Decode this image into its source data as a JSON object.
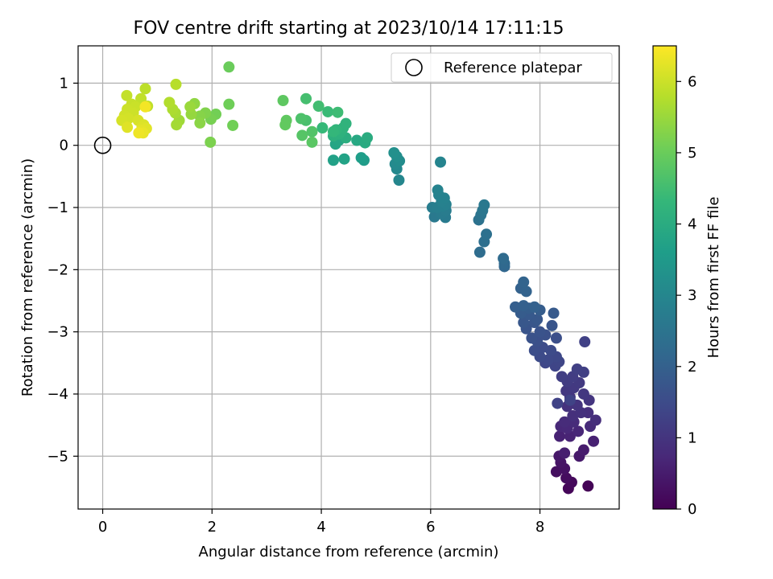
{
  "chart_data": {
    "type": "scatter",
    "title": "FOV centre drift starting at 2023/10/14 17:11:15",
    "xlabel": "Angular distance from reference (arcmin)",
    "ylabel": "Rotation from reference (arcmin)",
    "xlim": [
      -0.45,
      9.45
    ],
    "ylim": [
      -5.85,
      1.6
    ],
    "xticks": [
      0,
      2,
      4,
      6,
      8
    ],
    "yticks": [
      1,
      0,
      -1,
      -2,
      -3,
      -4,
      -5
    ],
    "xtick_labels": [
      "0",
      "2",
      "4",
      "6",
      "8"
    ],
    "ytick_labels": [
      "1",
      "0",
      "−1",
      "−2",
      "−3",
      "−4",
      "−5"
    ],
    "grid": true,
    "legend": {
      "placement": "top-right",
      "entries": [
        "Reference platepar"
      ]
    },
    "reference_point": {
      "x": 0,
      "y": 0
    },
    "colorbar": {
      "label": "Hours from first FF file",
      "colormap": "viridis",
      "range": [
        0,
        6.5
      ],
      "ticks": [
        0,
        1,
        2,
        3,
        4,
        5,
        6
      ],
      "tick_labels": [
        "0",
        "1",
        "2",
        "3",
        "4",
        "5",
        "6"
      ],
      "stops": [
        "#440154",
        "#482878",
        "#3e4989",
        "#31688e",
        "#26828e",
        "#1f9e89",
        "#35b779",
        "#6ece58",
        "#b5de2b",
        "#fde725"
      ]
    },
    "points": [
      {
        "x": 8.88,
        "y": -5.48,
        "h": 0.05
      },
      {
        "x": 8.52,
        "y": -5.52,
        "h": 0.1
      },
      {
        "x": 8.58,
        "y": -5.42,
        "h": 0.15
      },
      {
        "x": 8.48,
        "y": -5.35,
        "h": 0.2
      },
      {
        "x": 8.3,
        "y": -5.25,
        "h": 0.25
      },
      {
        "x": 8.45,
        "y": -5.2,
        "h": 0.3
      },
      {
        "x": 8.38,
        "y": -5.1,
        "h": 0.35
      },
      {
        "x": 8.35,
        "y": -5.0,
        "h": 0.4
      },
      {
        "x": 8.72,
        "y": -5.0,
        "h": 0.45
      },
      {
        "x": 8.8,
        "y": -4.9,
        "h": 0.5
      },
      {
        "x": 8.45,
        "y": -4.95,
        "h": 0.55
      },
      {
        "x": 8.98,
        "y": -4.76,
        "h": 0.6
      },
      {
        "x": 8.36,
        "y": -4.68,
        "h": 0.62
      },
      {
        "x": 8.55,
        "y": -4.68,
        "h": 0.65
      },
      {
        "x": 8.7,
        "y": -4.6,
        "h": 0.7
      },
      {
        "x": 8.38,
        "y": -4.52,
        "h": 0.72
      },
      {
        "x": 8.5,
        "y": -4.55,
        "h": 0.75
      },
      {
        "x": 8.92,
        "y": -4.52,
        "h": 0.78
      },
      {
        "x": 8.62,
        "y": -4.45,
        "h": 0.8
      },
      {
        "x": 8.45,
        "y": -4.45,
        "h": 0.82
      },
      {
        "x": 9.02,
        "y": -4.42,
        "h": 0.85
      },
      {
        "x": 8.88,
        "y": -4.3,
        "h": 0.88
      },
      {
        "x": 8.6,
        "y": -4.35,
        "h": 0.9
      },
      {
        "x": 8.75,
        "y": -4.3,
        "h": 0.92
      },
      {
        "x": 8.5,
        "y": -4.2,
        "h": 0.95
      },
      {
        "x": 8.68,
        "y": -4.18,
        "h": 0.98
      },
      {
        "x": 8.9,
        "y": -4.1,
        "h": 1.0
      },
      {
        "x": 8.55,
        "y": -4.05,
        "h": 1.02
      },
      {
        "x": 8.8,
        "y": -4.0,
        "h": 1.05
      },
      {
        "x": 8.48,
        "y": -3.95,
        "h": 1.08
      },
      {
        "x": 8.62,
        "y": -3.9,
        "h": 1.1
      },
      {
        "x": 8.72,
        "y": -3.82,
        "h": 1.12
      },
      {
        "x": 8.5,
        "y": -3.8,
        "h": 1.15
      },
      {
        "x": 8.6,
        "y": -3.72,
        "h": 1.18
      },
      {
        "x": 8.4,
        "y": -3.72,
        "h": 1.2
      },
      {
        "x": 8.8,
        "y": -3.65,
        "h": 1.22
      },
      {
        "x": 8.68,
        "y": -3.6,
        "h": 1.25
      },
      {
        "x": 8.82,
        "y": -3.16,
        "h": 1.28
      },
      {
        "x": 8.32,
        "y": -4.15,
        "h": 1.3
      },
      {
        "x": 8.55,
        "y": -4.1,
        "h": 1.32
      },
      {
        "x": 8.28,
        "y": -3.55,
        "h": 1.35
      },
      {
        "x": 8.35,
        "y": -3.48,
        "h": 1.38
      },
      {
        "x": 8.1,
        "y": -3.5,
        "h": 1.4
      },
      {
        "x": 8.3,
        "y": -3.4,
        "h": 1.42
      },
      {
        "x": 8.15,
        "y": -3.45,
        "h": 1.45
      },
      {
        "x": 8.0,
        "y": -3.4,
        "h": 1.48
      },
      {
        "x": 8.2,
        "y": -3.3,
        "h": 1.5
      },
      {
        "x": 8.05,
        "y": -3.25,
        "h": 1.52
      },
      {
        "x": 7.9,
        "y": -3.3,
        "h": 1.55
      },
      {
        "x": 8.3,
        "y": -3.1,
        "h": 1.58
      },
      {
        "x": 7.95,
        "y": -3.15,
        "h": 1.6
      },
      {
        "x": 8.1,
        "y": -3.05,
        "h": 1.62
      },
      {
        "x": 7.85,
        "y": -3.1,
        "h": 1.65
      },
      {
        "x": 8.0,
        "y": -3.0,
        "h": 1.68
      },
      {
        "x": 7.75,
        "y": -2.95,
        "h": 1.7
      },
      {
        "x": 8.22,
        "y": -2.9,
        "h": 1.72
      },
      {
        "x": 7.9,
        "y": -2.85,
        "h": 1.75
      },
      {
        "x": 7.7,
        "y": -2.85,
        "h": 1.78
      },
      {
        "x": 7.95,
        "y": -2.8,
        "h": 1.8
      },
      {
        "x": 7.8,
        "y": -2.72,
        "h": 1.82
      },
      {
        "x": 8.25,
        "y": -2.7,
        "h": 1.85
      },
      {
        "x": 7.65,
        "y": -2.7,
        "h": 1.88
      },
      {
        "x": 8.0,
        "y": -2.65,
        "h": 1.9
      },
      {
        "x": 7.8,
        "y": -2.62,
        "h": 1.92
      },
      {
        "x": 7.55,
        "y": -2.6,
        "h": 1.95
      },
      {
        "x": 7.7,
        "y": -2.58,
        "h": 1.98
      },
      {
        "x": 7.9,
        "y": -2.6,
        "h": 2.0
      },
      {
        "x": 7.65,
        "y": -2.3,
        "h": 2.02
      },
      {
        "x": 7.75,
        "y": -2.35,
        "h": 2.05
      },
      {
        "x": 7.7,
        "y": -2.2,
        "h": 2.08
      },
      {
        "x": 7.35,
        "y": -1.95,
        "h": 2.15
      },
      {
        "x": 7.35,
        "y": -1.9,
        "h": 2.2
      },
      {
        "x": 7.33,
        "y": -1.82,
        "h": 2.25
      },
      {
        "x": 6.9,
        "y": -1.72,
        "h": 2.3
      },
      {
        "x": 6.98,
        "y": -1.55,
        "h": 2.35
      },
      {
        "x": 7.02,
        "y": -1.43,
        "h": 2.4
      },
      {
        "x": 6.88,
        "y": -1.2,
        "h": 2.45
      },
      {
        "x": 6.92,
        "y": -1.12,
        "h": 2.5
      },
      {
        "x": 6.95,
        "y": -1.05,
        "h": 2.55
      },
      {
        "x": 6.98,
        "y": -0.96,
        "h": 2.6
      },
      {
        "x": 6.07,
        "y": -1.15,
        "h": 2.65
      },
      {
        "x": 6.27,
        "y": -1.16,
        "h": 2.68
      },
      {
        "x": 6.2,
        "y": -1.1,
        "h": 2.7
      },
      {
        "x": 6.28,
        "y": -1.05,
        "h": 2.72
      },
      {
        "x": 6.03,
        "y": -1.0,
        "h": 2.75
      },
      {
        "x": 6.12,
        "y": -1.0,
        "h": 2.78
      },
      {
        "x": 6.22,
        "y": -0.98,
        "h": 2.8
      },
      {
        "x": 6.28,
        "y": -0.95,
        "h": 2.82
      },
      {
        "x": 6.2,
        "y": -0.9,
        "h": 2.85
      },
      {
        "x": 6.25,
        "y": -0.85,
        "h": 2.88
      },
      {
        "x": 6.15,
        "y": -0.8,
        "h": 2.9
      },
      {
        "x": 6.13,
        "y": -0.72,
        "h": 2.92
      },
      {
        "x": 6.18,
        "y": -0.27,
        "h": 2.95
      },
      {
        "x": 5.42,
        "y": -0.56,
        "h": 3.0
      },
      {
        "x": 5.38,
        "y": -0.38,
        "h": 3.05
      },
      {
        "x": 5.35,
        "y": -0.3,
        "h": 3.1
      },
      {
        "x": 5.43,
        "y": -0.25,
        "h": 3.15
      },
      {
        "x": 5.38,
        "y": -0.18,
        "h": 3.2
      },
      {
        "x": 5.33,
        "y": -0.12,
        "h": 3.25
      },
      {
        "x": 4.78,
        "y": -0.24,
        "h": 3.55
      },
      {
        "x": 4.73,
        "y": -0.2,
        "h": 3.6
      },
      {
        "x": 4.22,
        "y": -0.24,
        "h": 3.7
      },
      {
        "x": 4.42,
        "y": -0.22,
        "h": 3.75
      },
      {
        "x": 4.26,
        "y": 0.02,
        "h": 3.8
      },
      {
        "x": 4.32,
        "y": 0.08,
        "h": 3.85
      },
      {
        "x": 4.65,
        "y": 0.08,
        "h": 3.9
      },
      {
        "x": 4.8,
        "y": 0.04,
        "h": 3.95
      },
      {
        "x": 4.84,
        "y": 0.12,
        "h": 4.0
      },
      {
        "x": 4.45,
        "y": 0.12,
        "h": 4.05
      },
      {
        "x": 4.22,
        "y": 0.15,
        "h": 4.1
      },
      {
        "x": 4.32,
        "y": 0.18,
        "h": 4.12
      },
      {
        "x": 4.36,
        "y": 0.22,
        "h": 4.15
      },
      {
        "x": 4.4,
        "y": 0.28,
        "h": 4.18
      },
      {
        "x": 4.45,
        "y": 0.35,
        "h": 4.2
      },
      {
        "x": 4.27,
        "y": 0.25,
        "h": 4.25
      },
      {
        "x": 4.22,
        "y": 0.22,
        "h": 4.3
      },
      {
        "x": 4.02,
        "y": 0.28,
        "h": 4.35
      },
      {
        "x": 4.12,
        "y": 0.54,
        "h": 4.4
      },
      {
        "x": 4.3,
        "y": 0.53,
        "h": 4.45
      },
      {
        "x": 3.95,
        "y": 0.63,
        "h": 4.5
      },
      {
        "x": 3.72,
        "y": 0.75,
        "h": 4.55
      },
      {
        "x": 3.72,
        "y": 0.4,
        "h": 4.6
      },
      {
        "x": 3.63,
        "y": 0.43,
        "h": 4.65
      },
      {
        "x": 3.83,
        "y": 0.22,
        "h": 4.7
      },
      {
        "x": 3.65,
        "y": 0.16,
        "h": 4.75
      },
      {
        "x": 3.83,
        "y": 0.05,
        "h": 4.8
      },
      {
        "x": 3.3,
        "y": 0.72,
        "h": 4.85
      },
      {
        "x": 3.36,
        "y": 0.4,
        "h": 4.88
      },
      {
        "x": 3.34,
        "y": 0.33,
        "h": 4.9
      },
      {
        "x": 2.31,
        "y": 1.26,
        "h": 5.0
      },
      {
        "x": 2.31,
        "y": 0.66,
        "h": 5.05
      },
      {
        "x": 2.38,
        "y": 0.32,
        "h": 5.08
      },
      {
        "x": 2.07,
        "y": 0.5,
        "h": 5.1
      },
      {
        "x": 1.98,
        "y": 0.42,
        "h": 5.15
      },
      {
        "x": 1.97,
        "y": 0.05,
        "h": 5.2
      },
      {
        "x": 1.88,
        "y": 0.52,
        "h": 5.25
      },
      {
        "x": 1.78,
        "y": 0.47,
        "h": 5.3
      },
      {
        "x": 1.78,
        "y": 0.36,
        "h": 5.35
      },
      {
        "x": 1.68,
        "y": 0.67,
        "h": 5.4
      },
      {
        "x": 1.62,
        "y": 0.5,
        "h": 5.45
      },
      {
        "x": 1.6,
        "y": 0.62,
        "h": 5.5
      },
      {
        "x": 1.4,
        "y": 0.4,
        "h": 5.55
      },
      {
        "x": 1.35,
        "y": 0.33,
        "h": 5.6
      },
      {
        "x": 1.33,
        "y": 0.52,
        "h": 5.65
      },
      {
        "x": 1.28,
        "y": 0.58,
        "h": 5.7
      },
      {
        "x": 1.22,
        "y": 0.69,
        "h": 5.75
      },
      {
        "x": 1.34,
        "y": 0.98,
        "h": 5.8
      },
      {
        "x": 0.78,
        "y": 0.91,
        "h": 5.85
      },
      {
        "x": 0.82,
        "y": 0.63,
        "h": 5.88
      },
      {
        "x": 0.7,
        "y": 0.75,
        "h": 5.9
      },
      {
        "x": 0.44,
        "y": 0.8,
        "h": 5.92
      },
      {
        "x": 0.53,
        "y": 0.66,
        "h": 5.95
      },
      {
        "x": 0.6,
        "y": 0.62,
        "h": 5.98
      },
      {
        "x": 0.45,
        "y": 0.58,
        "h": 6.0
      },
      {
        "x": 0.56,
        "y": 0.52,
        "h": 6.02
      },
      {
        "x": 0.4,
        "y": 0.48,
        "h": 6.05
      },
      {
        "x": 0.47,
        "y": 0.43,
        "h": 6.08
      },
      {
        "x": 0.35,
        "y": 0.4,
        "h": 6.1
      },
      {
        "x": 0.65,
        "y": 0.4,
        "h": 6.12
      },
      {
        "x": 0.75,
        "y": 0.33,
        "h": 6.15
      },
      {
        "x": 0.72,
        "y": 0.29,
        "h": 6.18
      },
      {
        "x": 0.45,
        "y": 0.29,
        "h": 6.2
      },
      {
        "x": 0.8,
        "y": 0.27,
        "h": 6.22
      },
      {
        "x": 0.71,
        "y": 0.24,
        "h": 6.25
      },
      {
        "x": 0.74,
        "y": 0.2,
        "h": 6.3
      },
      {
        "x": 0.66,
        "y": 0.2,
        "h": 6.35
      },
      {
        "x": 0.78,
        "y": 0.62,
        "h": 6.4
      }
    ]
  }
}
